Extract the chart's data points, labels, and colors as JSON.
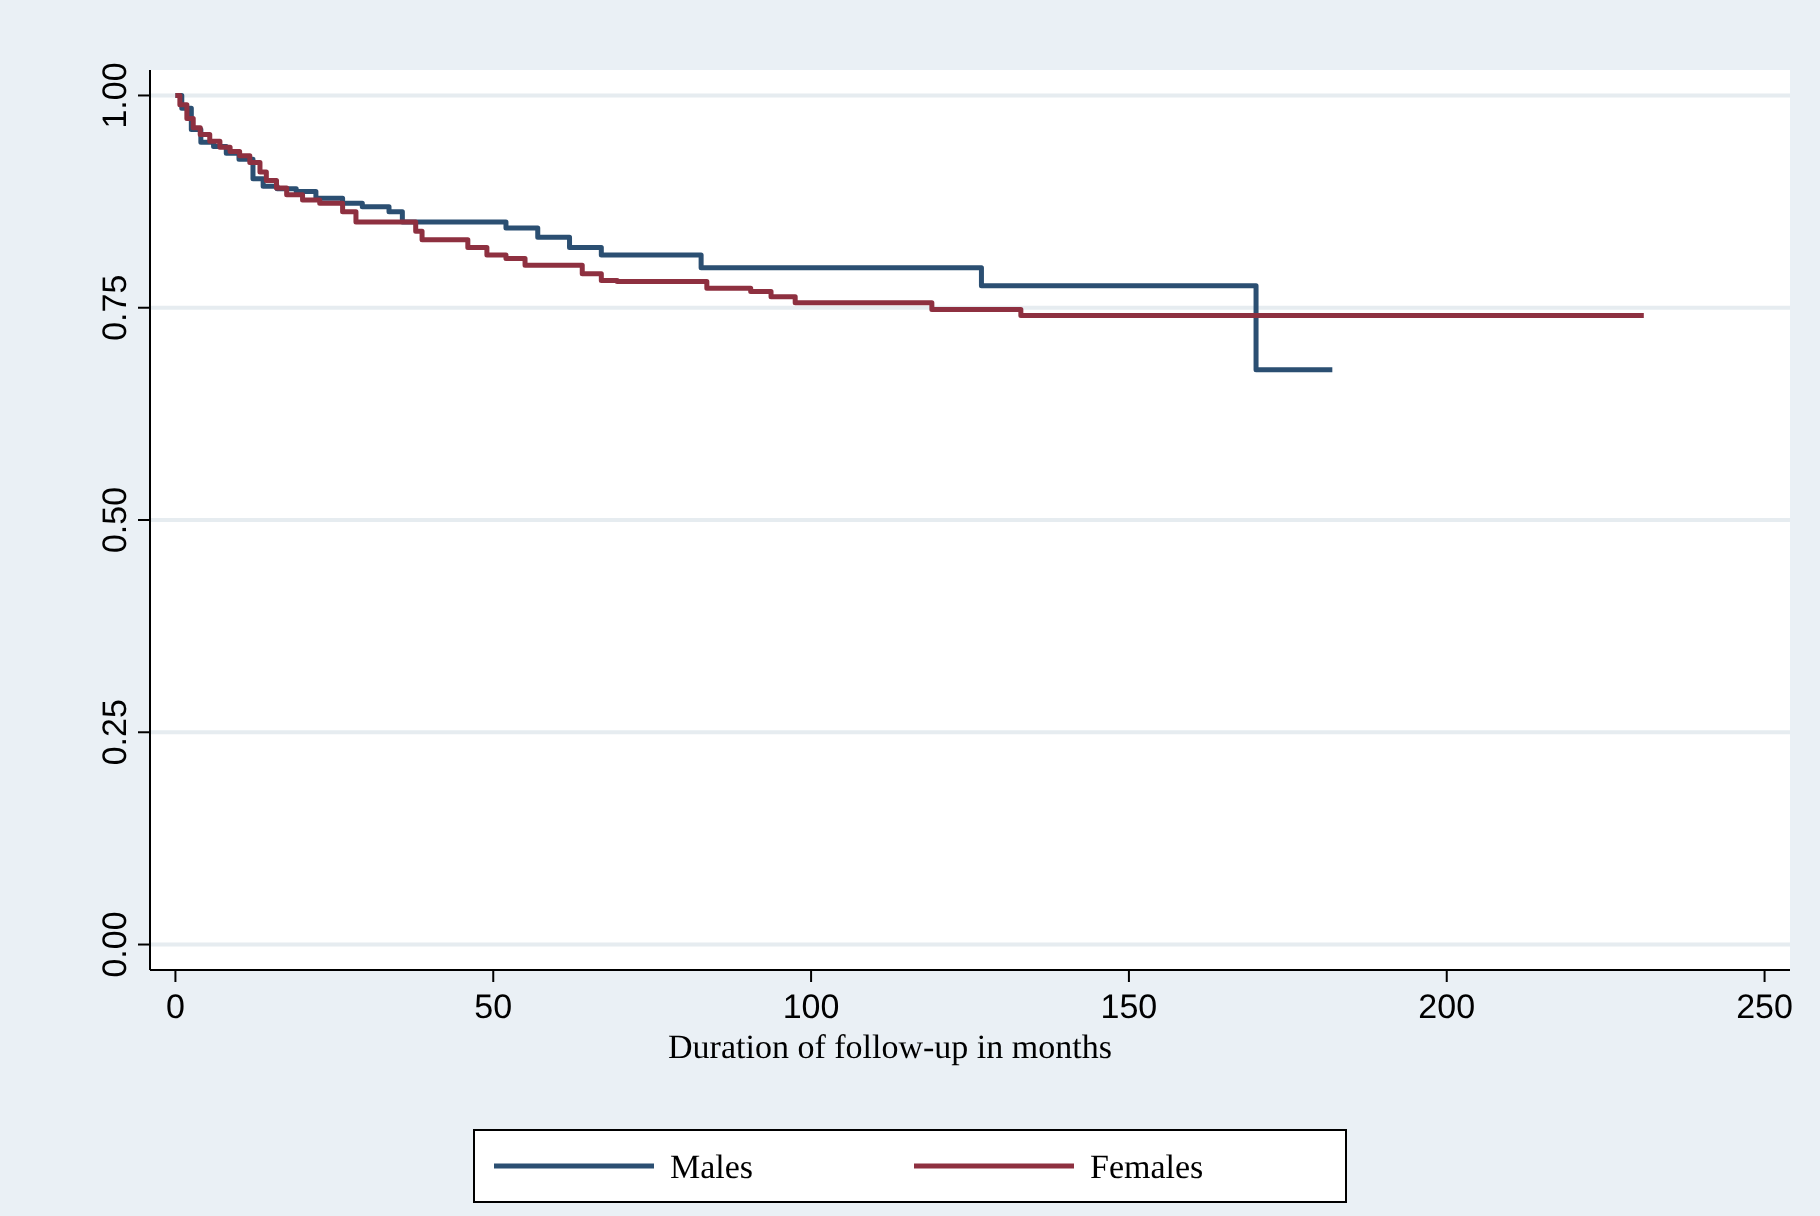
{
  "chart_data": {
    "type": "step",
    "xlabel": "Duration of follow-up in months",
    "xlim": [
      -4,
      254
    ],
    "ylim": [
      -0.03,
      1.03
    ],
    "xticks": [
      0,
      50,
      100,
      150,
      200,
      250
    ],
    "yticks": [
      {
        "value": 0,
        "label": "0.00"
      },
      {
        "value": 0.25,
        "label": "0.25"
      },
      {
        "value": 0.5,
        "label": "0.50"
      },
      {
        "value": 0.75,
        "label": "0.75"
      },
      {
        "value": 1,
        "label": "1.00"
      }
    ],
    "grid": "y",
    "legend": "bottom",
    "line_style": "solid",
    "series": [
      {
        "name": "Males",
        "color": "#2b4f72",
        "x": [
          0,
          1,
          2.5,
          4,
          6,
          8,
          10,
          12.2,
          13.8,
          16,
          19,
          22.1,
          26.3,
          29.4,
          33.6,
          35.7,
          52,
          57,
          62,
          67,
          82.7,
          126.8,
          170,
          182
        ],
        "values": [
          1,
          0.985,
          0.96,
          0.945,
          0.94,
          0.932,
          0.925,
          0.902,
          0.893,
          0.89,
          0.887,
          0.879,
          0.873,
          0.869,
          0.863,
          0.851,
          0.844,
          0.833,
          0.821,
          0.812,
          0.797,
          0.776,
          0.677,
          0.677
        ]
      },
      {
        "name": "Females",
        "color": "#8e3040",
        "x": [
          0,
          0.7,
          1.8,
          2.8,
          3.9,
          5.4,
          7,
          8.6,
          10.1,
          11.7,
          13.3,
          14.3,
          15.9,
          17.5,
          20,
          22.7,
          26.3,
          28.4,
          37.8,
          38.8,
          46,
          49,
          52,
          55,
          64,
          67,
          69.5,
          83.6,
          90.5,
          93.7,
          97.5,
          119,
          133,
          231
        ],
        "values": [
          1,
          0.989,
          0.973,
          0.962,
          0.954,
          0.946,
          0.939,
          0.934,
          0.929,
          0.921,
          0.91,
          0.9,
          0.891,
          0.883,
          0.877,
          0.873,
          0.863,
          0.851,
          0.84,
          0.83,
          0.821,
          0.812,
          0.808,
          0.8,
          0.79,
          0.782,
          0.781,
          0.773,
          0.769,
          0.763,
          0.756,
          0.748,
          0.741,
          0.741
        ]
      }
    ]
  }
}
